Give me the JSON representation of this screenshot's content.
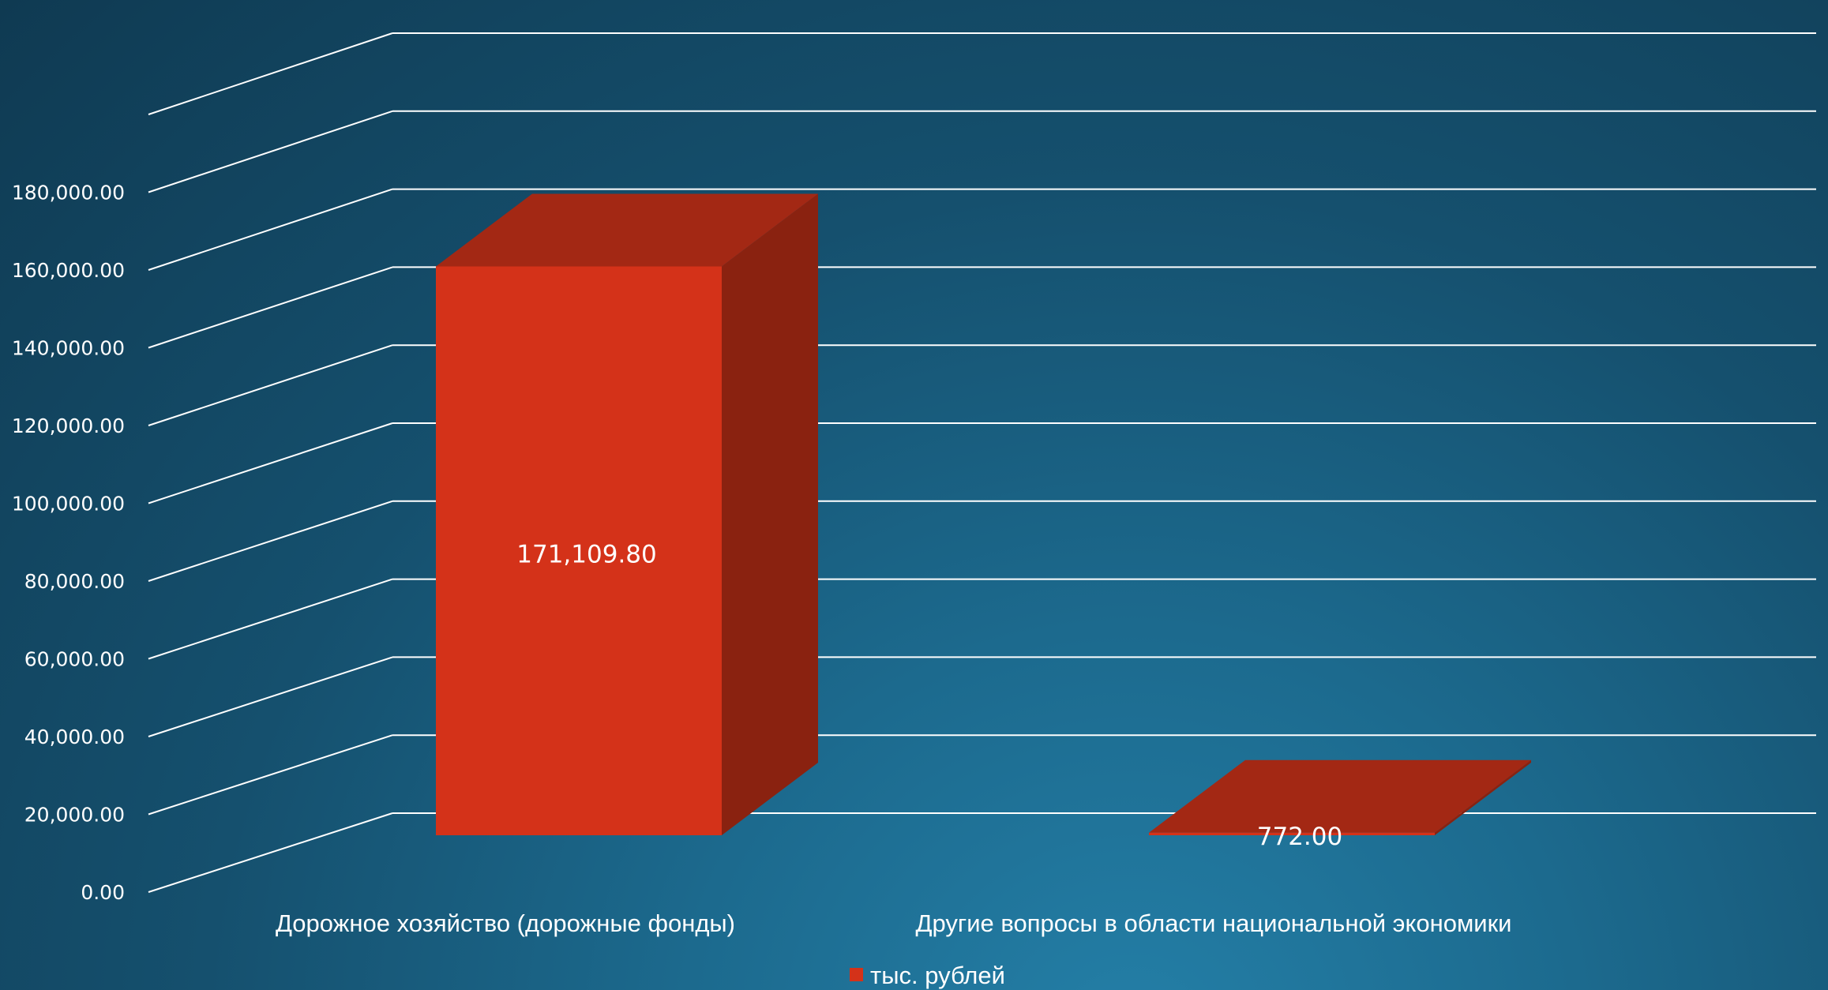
{
  "chart_data": {
    "type": "bar",
    "style": "3d",
    "categories": [
      "Дорожное хозяйство (дорожные фонды)",
      "Другие вопросы в области национальной экономики"
    ],
    "series": [
      {
        "name": "тыс. рублей",
        "values": [
          171109.8,
          772.0
        ]
      }
    ],
    "data_labels": [
      "171,109.80",
      "772.00"
    ],
    "ylim": [
      0,
      180000
    ],
    "yticks": [
      0,
      20000,
      40000,
      60000,
      80000,
      100000,
      120000,
      140000,
      160000,
      180000
    ],
    "ytick_labels": [
      "0.00",
      "20,000.00",
      "40,000.00",
      "60,000.00",
      "80,000.00",
      "100,000.00",
      "120,000.00",
      "140,000.00",
      "160,000.00",
      "180,000.00"
    ],
    "grid": true,
    "legend_position": "bottom",
    "colors": {
      "bar_front": "#d43219",
      "bar_top": "#a32814",
      "bar_side": "#8a2210",
      "gridline": "#ffffff",
      "text": "#ffffff"
    }
  }
}
